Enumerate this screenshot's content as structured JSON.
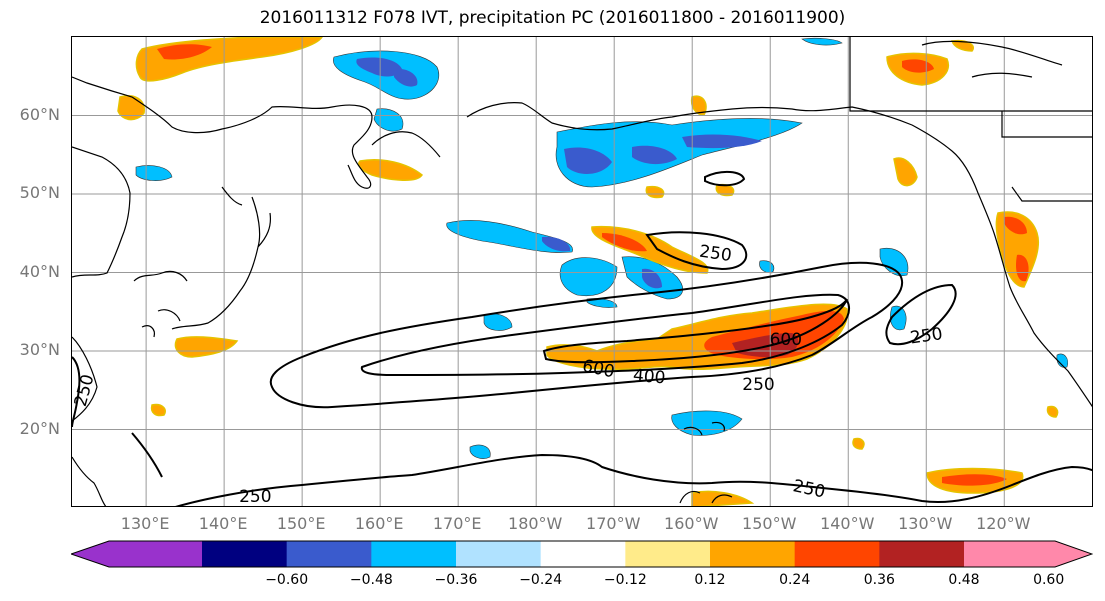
{
  "title": "2016011312 F078 IVT, precipitation PC (2016011800 - 2016011900)",
  "map": {
    "lat_labels": [
      {
        "text": "60°N",
        "lat": 60
      },
      {
        "text": "50°N",
        "lat": 50
      },
      {
        "text": "40°N",
        "lat": 40
      },
      {
        "text": "30°N",
        "lat": 30
      },
      {
        "text": "20°N",
        "lat": 20
      }
    ],
    "lon_labels": [
      {
        "text": "130°E",
        "lon": 130
      },
      {
        "text": "140°E",
        "lon": 140
      },
      {
        "text": "150°E",
        "lon": 150
      },
      {
        "text": "160°E",
        "lon": 160
      },
      {
        "text": "170°E",
        "lon": 170
      },
      {
        "text": "180°W",
        "lon": 180
      },
      {
        "text": "170°W",
        "lon": 190
      },
      {
        "text": "160°W",
        "lon": 200
      },
      {
        "text": "150°W",
        "lon": 210
      },
      {
        "text": "140°W",
        "lon": 220
      },
      {
        "text": "130°W",
        "lon": 230
      },
      {
        "text": "120°W",
        "lon": 240
      }
    ],
    "contour_labels": [
      {
        "text": "250",
        "lon": 203,
        "lat": 42.5,
        "rot": 8
      },
      {
        "text": "600",
        "lon": 188,
        "lat": 27.8,
        "rot": 12
      },
      {
        "text": "400",
        "lon": 194.5,
        "lat": 26.8,
        "rot": 5
      },
      {
        "text": "600",
        "lon": 212,
        "lat": 31.5,
        "rot": 0
      },
      {
        "text": "250",
        "lon": 208.5,
        "lat": 25.8,
        "rot": 0
      },
      {
        "text": "250",
        "lon": 230,
        "lat": 32,
        "rot": -8
      },
      {
        "text": "250",
        "lon": 122,
        "lat": 25,
        "rot": -75
      },
      {
        "text": "250",
        "lon": 144,
        "lat": 11.5,
        "rot": 0
      },
      {
        "text": "250",
        "lon": 215,
        "lat": 12.5,
        "rot": 12
      }
    ]
  },
  "colorbar": {
    "colors": [
      "#9932cc",
      "#000080",
      "#3a5bcd",
      "#00bfff",
      "#b0e2ff",
      "#ffffff",
      "#ffeb8a",
      "#ffa500",
      "#ff4500",
      "#b22222",
      "#ff88aa"
    ],
    "ticks": [
      "−0.60",
      "−0.48",
      "−0.36",
      "−0.24",
      "−0.12",
      "0.12",
      "0.24",
      "0.36",
      "0.48",
      "0.60"
    ]
  }
}
